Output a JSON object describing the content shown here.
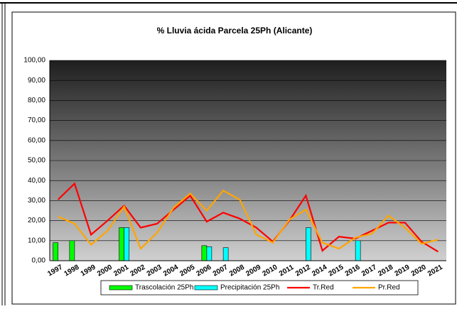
{
  "chart_data": {
    "type": "combo",
    "title": "% Lluvia ácida Parcela 25Ph (Alicante)",
    "categories": [
      "1997",
      "1998",
      "1999",
      "2000",
      "2001",
      "2002",
      "2003",
      "2004",
      "2005",
      "2006",
      "2007",
      "2008",
      "2009",
      "2010",
      "2011",
      "2012",
      "2014",
      "2015",
      "2016",
      "2017",
      "2018",
      "2019",
      "2020",
      "2021"
    ],
    "series": [
      {
        "name": "Trascolación  25Ph",
        "mark": "bar",
        "color": "#00ff00",
        "values": [
          9,
          10,
          null,
          null,
          16.5,
          null,
          null,
          null,
          null,
          7.5,
          null,
          null,
          null,
          null,
          null,
          null,
          null,
          null,
          null,
          null,
          null,
          null,
          null,
          null
        ]
      },
      {
        "name": "Precipitación 25Ph",
        "mark": "bar",
        "color": "#00ffff",
        "values": [
          null,
          null,
          null,
          null,
          16.5,
          null,
          null,
          null,
          null,
          7,
          6.5,
          null,
          null,
          null,
          null,
          16.5,
          null,
          null,
          10,
          null,
          null,
          null,
          null,
          null
        ]
      },
      {
        "name": "Tr.Red",
        "mark": "line",
        "color": "#ff0000",
        "values": [
          30.5,
          38.5,
          13,
          20,
          27.5,
          16.5,
          18.5,
          25.5,
          32.5,
          19.5,
          24,
          21,
          16.5,
          9.5,
          20,
          32.5,
          5,
          12,
          11,
          15,
          19,
          19,
          9.5,
          4.5
        ]
      },
      {
        "name": "Pr.Red",
        "mark": "line",
        "color": "#ffa500",
        "values": [
          22,
          18.5,
          8,
          15,
          27,
          6,
          14,
          26.5,
          33.5,
          25,
          35,
          30.5,
          13,
          9,
          20.5,
          25.5,
          9,
          6,
          11.5,
          13.5,
          22.5,
          16.5,
          8.5,
          10.5
        ]
      }
    ],
    "ylim": [
      0,
      100
    ],
    "yticks": [
      {
        "value": 0,
        "label": "0,00"
      },
      {
        "value": 10,
        "label": "10,00"
      },
      {
        "value": 20,
        "label": "20,00"
      },
      {
        "value": 30,
        "label": "30,00"
      },
      {
        "value": 40,
        "label": "40,00"
      },
      {
        "value": 50,
        "label": "50,00"
      },
      {
        "value": 60,
        "label": "60,00"
      },
      {
        "value": 70,
        "label": "70,00"
      },
      {
        "value": 80,
        "label": "80,00"
      },
      {
        "value": 90,
        "label": "90,00"
      },
      {
        "value": 100,
        "label": "100,00"
      }
    ],
    "grid": true,
    "legend": "bottom"
  }
}
